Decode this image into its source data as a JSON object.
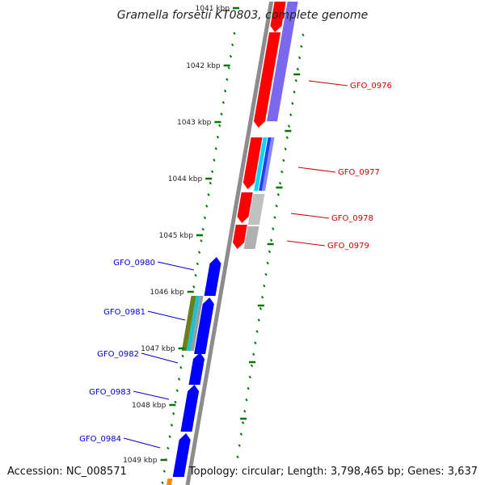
{
  "title": "Gramella forsetii KT0803, complete genome",
  "accession": "Accession: NC_008571",
  "topology": "Topology: circular; Length: 3,798,465 bp; Genes: 3,637",
  "colors": {
    "forward_gene": "#ff0000",
    "reverse_gene": "#0000ff",
    "forward_label": "#cc0000",
    "reverse_label": "#0000cc",
    "backbone": "#8c8c8c",
    "tick": "#007700"
  },
  "kbp_ticks": [
    "1041 kbp",
    "1042 kbp",
    "1043 kbp",
    "1044 kbp",
    "1045 kbp",
    "1046 kbp",
    "1047 kbp",
    "1048 kbp",
    "1049 kbp"
  ],
  "forward_genes": [
    {
      "label": "GFO_0976"
    },
    {
      "label": "GFO_0977"
    },
    {
      "label": "GFO_0978"
    },
    {
      "label": "GFO_0979"
    }
  ],
  "reverse_genes": [
    {
      "label": "GFO_0980"
    },
    {
      "label": "GFO_0981"
    },
    {
      "label": "GFO_0982"
    },
    {
      "label": "GFO_0983"
    },
    {
      "label": "GFO_0984"
    }
  ]
}
